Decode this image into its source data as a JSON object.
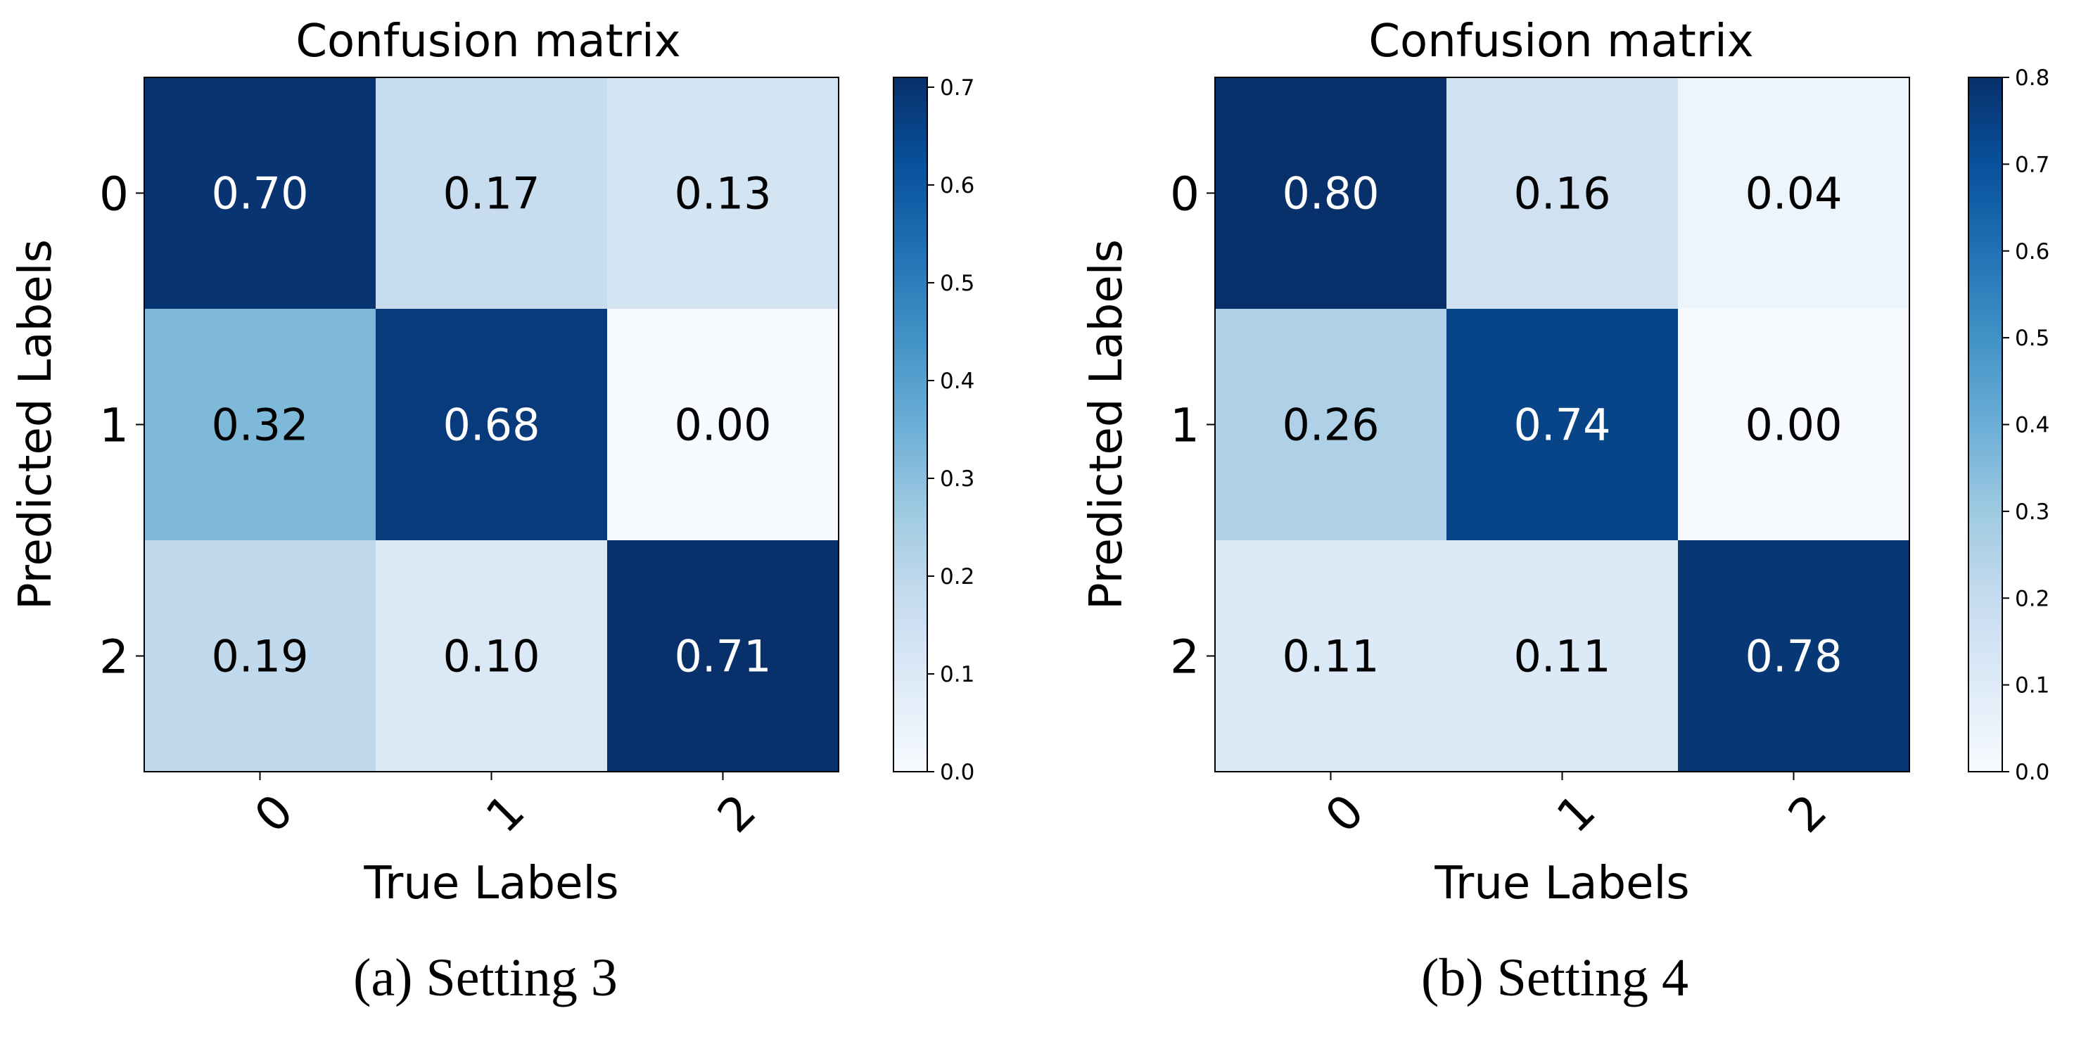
{
  "chart_data": [
    {
      "type": "heatmap",
      "title": "Confusion matrix",
      "xlabel": "True Labels",
      "ylabel": "Predicted Labels",
      "x_categories": [
        "0",
        "1",
        "2"
      ],
      "y_categories": [
        "0",
        "1",
        "2"
      ],
      "values": [
        [
          0.7,
          0.17,
          0.13
        ],
        [
          0.32,
          0.68,
          0.0
        ],
        [
          0.19,
          0.1,
          0.71
        ]
      ],
      "cell_labels": [
        [
          "0.70",
          "0.17",
          "0.13"
        ],
        [
          "0.32",
          "0.68",
          "0.00"
        ],
        [
          "0.19",
          "0.10",
          "0.71"
        ]
      ],
      "colormap": "Blues",
      "colorbar": {
        "min": 0.0,
        "max": 0.71,
        "ticks": [
          0.0,
          0.1,
          0.2,
          0.3,
          0.4,
          0.5,
          0.6,
          0.7
        ],
        "tick_labels": [
          "0.0",
          "0.1",
          "0.2",
          "0.3",
          "0.4",
          "0.5",
          "0.6",
          "0.7"
        ]
      },
      "caption": "(a) Setting 3"
    },
    {
      "type": "heatmap",
      "title": "Confusion matrix",
      "xlabel": "True Labels",
      "ylabel": "Predicted Labels",
      "x_categories": [
        "0",
        "1",
        "2"
      ],
      "y_categories": [
        "0",
        "1",
        "2"
      ],
      "values": [
        [
          0.8,
          0.16,
          0.04
        ],
        [
          0.26,
          0.74,
          0.0
        ],
        [
          0.11,
          0.11,
          0.78
        ]
      ],
      "cell_labels": [
        [
          "0.80",
          "0.16",
          "0.04"
        ],
        [
          "0.26",
          "0.74",
          "0.00"
        ],
        [
          "0.11",
          "0.11",
          "0.78"
        ]
      ],
      "colormap": "Blues",
      "colorbar": {
        "min": 0.0,
        "max": 0.8,
        "ticks": [
          0.0,
          0.1,
          0.2,
          0.3,
          0.4,
          0.5,
          0.6,
          0.7,
          0.8
        ],
        "tick_labels": [
          "0.0",
          "0.1",
          "0.2",
          "0.3",
          "0.4",
          "0.5",
          "0.6",
          "0.7",
          "0.8"
        ]
      },
      "caption": "(b) Setting 4"
    }
  ]
}
